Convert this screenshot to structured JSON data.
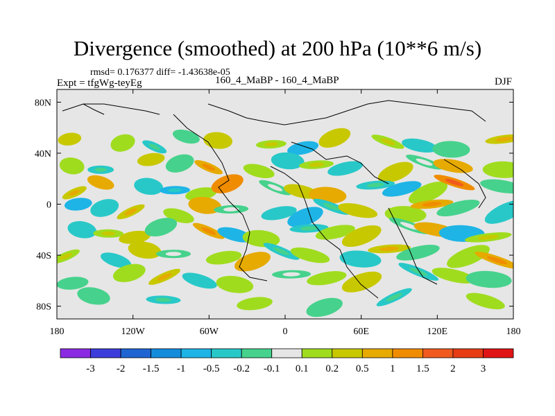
{
  "chart_data": {
    "type": "heatmap",
    "title": "Divergence (smoothed) at 200 hPa (10**6 m/s)",
    "stats_text": "rmsd= 0.176377 diff= -1.43638e-05",
    "left_label": "Expt = tfgWg-teyEg",
    "center_label": "160_4_MaBP - 160_4_MaBP",
    "right_label": "DJF",
    "x_ticks": [
      "180",
      "120W",
      "60W",
      "0",
      "60E",
      "120E",
      "180"
    ],
    "x_tick_values": [
      -180,
      -120,
      -60,
      0,
      60,
      120,
      180
    ],
    "y_ticks": [
      "80N",
      "40N",
      "0",
      "40S",
      "80S"
    ],
    "y_tick_values": [
      80,
      40,
      0,
      -40,
      -80
    ],
    "xlim": [
      -180,
      180
    ],
    "ylim": [
      -90,
      90
    ],
    "colorbar_labels": [
      "-3",
      "-2",
      "-1.5",
      "-1",
      "-0.5",
      "-0.2",
      "-0.1",
      "0.1",
      "0.2",
      "0.5",
      "1",
      "1.5",
      "2",
      "3"
    ],
    "colorbar_levels": [
      -3,
      -2,
      -1.5,
      -1,
      -0.5,
      -0.2,
      -0.1,
      0.1,
      0.2,
      0.5,
      1,
      1.5,
      2,
      3
    ],
    "colorbar_colors": [
      "#8a2be2",
      "#3c3cdc",
      "#1e64d2",
      "#148cdc",
      "#1eb4e6",
      "#28c8c8",
      "#46d28c",
      "#e6e6e6",
      "#a0dc1e",
      "#c8c800",
      "#e6aa00",
      "#f08c00",
      "#f05a1e",
      "#e63c14",
      "#e01414"
    ]
  }
}
